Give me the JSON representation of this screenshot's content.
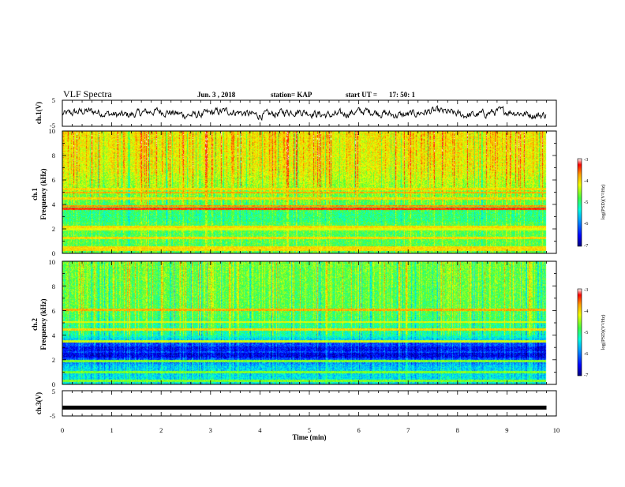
{
  "header": {
    "title": "VLF Spectra",
    "date": "Jun. 3 , 2018",
    "station": "station= KAP",
    "start": "start UT =",
    "start_time": "17: 50: 1"
  },
  "chart_data": [
    {
      "type": "line",
      "name": "ch1-waveform",
      "ylabel": "ch.1(V)",
      "ylim": [
        -5,
        5
      ],
      "y_ticks": [
        "5",
        "-5"
      ],
      "xlim": [
        0,
        10
      ],
      "description_values": "noisy waveform about 0 V, amplitude about ±1.5 V, from 0 to 9.8 min"
    },
    {
      "type": "heatmap",
      "name": "ch1-spectrogram",
      "ylabel_top": "ch.1",
      "ylabel": "Frequency (kHz)",
      "ylim": [
        0,
        10
      ],
      "y_ticks": [
        "0",
        "2",
        "4",
        "6",
        "8",
        "10"
      ],
      "xlim": [
        0,
        10
      ],
      "data_end_min": 9.8,
      "colorbar": {
        "label": "log(PSD)(V²/Hz)",
        "range": [
          -7,
          -3
        ],
        "ticks": [
          "-3",
          "-4",
          "-5",
          "-6",
          "-7"
        ]
      },
      "bands_khz": [
        {
          "f": 3.7,
          "level": -3.4
        },
        {
          "f": 3.9,
          "level": -3.7
        },
        {
          "f": 5.0,
          "level": -3.8
        },
        {
          "f": 5.3,
          "level": -4.0
        },
        {
          "f": 4.5,
          "level": -4.0
        },
        {
          "f": 2.2,
          "level": -4.0
        },
        {
          "f": 2.0,
          "level": -4.2
        },
        {
          "f": 1.3,
          "level": -4.0
        },
        {
          "f": 0.5,
          "level": -4.0
        },
        {
          "f": 0.3,
          "level": -4.0
        }
      ],
      "low_bands_khz": [
        {
          "f": 3.2,
          "level": -5.0
        },
        {
          "f": 2.8,
          "level": -5.0
        }
      ],
      "background_by_khz": [
        {
          "f": 0,
          "level": -4.8
        },
        {
          "f": 2,
          "level": -4.8
        },
        {
          "f": 3.3,
          "level": -5.0
        },
        {
          "f": 4,
          "level": -4.8
        },
        {
          "f": 5.5,
          "level": -4.5
        },
        {
          "f": 7,
          "level": -4.2
        },
        {
          "f": 10,
          "level": -4.1
        }
      ]
    },
    {
      "type": "heatmap",
      "name": "ch2-spectrogram",
      "ylabel_top": "ch.2",
      "ylabel": "Frequency (kHz)",
      "ylim": [
        0,
        10
      ],
      "y_ticks": [
        "0",
        "2",
        "4",
        "6",
        "8",
        "10"
      ],
      "xlim": [
        0,
        10
      ],
      "data_end_min": 9.8,
      "colorbar": {
        "label": "log(PSD)(V²/Hz)",
        "range": [
          -7,
          -3
        ],
        "ticks": [
          "-3",
          "-4",
          "-5",
          "-6",
          "-7"
        ]
      },
      "bands_khz": [
        {
          "f": 6.1,
          "level": -3.8
        },
        {
          "f": 5.1,
          "level": -4.2
        },
        {
          "f": 4.5,
          "level": -4.0
        },
        {
          "f": 3.5,
          "level": -4.3
        },
        {
          "f": 1.9,
          "level": -4.6
        },
        {
          "f": 1.0,
          "level": -4.6
        },
        {
          "f": 0.3,
          "level": -4.6
        }
      ],
      "low_bands_khz": [
        {
          "f": 2.9,
          "level": -6.5
        },
        {
          "f": 2.4,
          "level": -6.6
        },
        {
          "f": 3.3,
          "level": -6.2
        }
      ],
      "background_by_khz": [
        {
          "f": 0,
          "level": -5.4
        },
        {
          "f": 1.5,
          "level": -5.6
        },
        {
          "f": 2.2,
          "level": -6.3
        },
        {
          "f": 3.2,
          "level": -6.2
        },
        {
          "f": 4.0,
          "level": -5.2
        },
        {
          "f": 6,
          "level": -4.8
        },
        {
          "f": 10,
          "level": -4.7
        }
      ]
    },
    {
      "type": "line",
      "name": "ch3-waveform",
      "ylabel": "ch.3(V)",
      "ylim": [
        -5,
        5
      ],
      "y_ticks": [
        "5",
        "-5"
      ],
      "xlim": [
        0,
        10
      ],
      "values_note": "flat at about -1.7 V",
      "level": -1.7
    }
  ],
  "x_axis": {
    "label": "Time (min)",
    "ticks": [
      "0",
      "1",
      "2",
      "3",
      "4",
      "5",
      "6",
      "7",
      "8",
      "9",
      "10"
    ]
  }
}
